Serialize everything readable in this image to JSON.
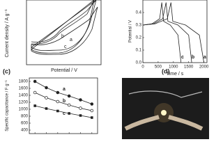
{
  "chart_data": [
    {
      "type": "cv",
      "x_label": "Potential / V",
      "y_label": "Current density / A g⁻¹",
      "series": [
        {
          "name": "a"
        },
        {
          "name": "b"
        },
        {
          "name": "c"
        }
      ]
    },
    {
      "type": "line",
      "x_label": "Time / s",
      "y_label": "Potential / V",
      "xlim": [
        0,
        2100
      ],
      "xticks": [
        0,
        500,
        1000,
        1500,
        2000
      ],
      "ylim": [
        0,
        0.5
      ],
      "yticks": [
        {
          "value": 0,
          "label": "0.0"
        },
        0.1,
        0.2,
        0.3,
        0.4
      ],
      "series": [
        {
          "name": "a",
          "color": "#222222",
          "x": [
            0,
            400,
            800,
            920,
            980,
            1400,
            1850,
            2000
          ],
          "values": [
            0.3,
            0.31,
            0.35,
            0.48,
            0.33,
            0.3,
            0.22,
            0
          ]
        },
        {
          "name": "b",
          "color": "#222222",
          "x": [
            0,
            350,
            650,
            760,
            820,
            1150,
            1500,
            1600
          ],
          "values": [
            0.3,
            0.31,
            0.35,
            0.48,
            0.33,
            0.3,
            0.22,
            0
          ]
        },
        {
          "name": "c",
          "color": "#222222",
          "x": [
            0,
            300,
            550,
            620,
            680,
            900,
            1150,
            1250
          ],
          "values": [
            0.3,
            0.31,
            0.35,
            0.48,
            0.33,
            0.3,
            0.22,
            0
          ]
        }
      ]
    },
    {
      "type": "line",
      "label": "(c)",
      "y_label": "Specific capacitance / F g⁻¹",
      "categories": [
        null,
        null,
        null,
        null,
        null,
        null
      ],
      "ylim": [
        300,
        1900
      ],
      "yticks": [
        400,
        600,
        800,
        1000,
        1200,
        1400,
        1600,
        1800
      ],
      "series": [
        {
          "name": "a",
          "color": "#222222",
          "values": [
            1800,
            1620,
            1480,
            1380,
            1270,
            1150
          ]
        },
        {
          "name": "b",
          "color": "#222222",
          "values": [
            1480,
            1330,
            1220,
            1120,
            1030,
            960
          ]
        },
        {
          "name": "c",
          "color": "#222222",
          "values": [
            1100,
            1020,
            950,
            880,
            820,
            760
          ]
        }
      ]
    }
  ],
  "photo": {
    "label": "(d)"
  }
}
